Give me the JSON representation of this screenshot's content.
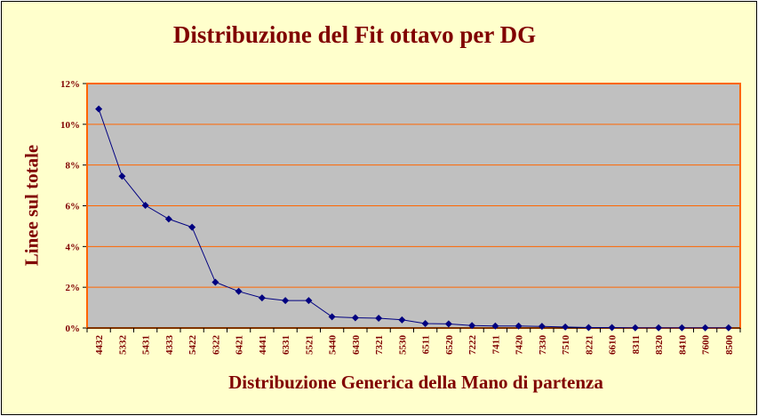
{
  "chart_data": {
    "type": "line",
    "title": "Distribuzione del Fit ottavo per DG",
    "xlabel": "Distribuzione Generica della Mano di partenza",
    "ylabel": "Linee sul totale",
    "ylim": [
      0,
      12
    ],
    "yticks": [
      "0%",
      "2%",
      "4%",
      "6%",
      "8%",
      "10%",
      "12%"
    ],
    "grid": "horizontal",
    "legend": "none",
    "colors": {
      "background": "#ffffcc",
      "plot_area": "#c0c0c0",
      "plot_border": "#ff6600",
      "gridline": "#ff6600",
      "series": "#000080",
      "text": "#800000"
    },
    "categories": [
      "4432",
      "5332",
      "5431",
      "4333",
      "5422",
      "6322",
      "6421",
      "4441",
      "6331",
      "5521",
      "5440",
      "6430",
      "7321",
      "5530",
      "6511",
      "6520",
      "7222",
      "7411",
      "7420",
      "7330",
      "7510",
      "8221",
      "6610",
      "8311",
      "8320",
      "8410",
      "7600",
      "8500"
    ],
    "series": [
      {
        "values": [
          10.75,
          7.45,
          6.02,
          5.35,
          4.95,
          2.25,
          1.8,
          1.48,
          1.35,
          1.35,
          0.55,
          0.5,
          0.48,
          0.4,
          0.22,
          0.2,
          0.12,
          0.1,
          0.1,
          0.08,
          0.05,
          0.02,
          0.02,
          0.01,
          0.01,
          0.01,
          0.01,
          0.01
        ]
      }
    ]
  }
}
